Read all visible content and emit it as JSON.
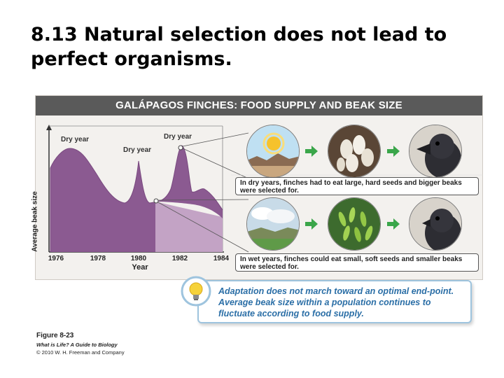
{
  "slide": {
    "title": "8.13  Natural selection does not lead to perfect organisms."
  },
  "figure": {
    "header": "GALÁPAGOS FINCHES: FOOD SUPPLY AND BEAK SIZE",
    "ylabel": "Average beak size",
    "xlabel": "Year",
    "xticks": [
      "1976",
      "1978",
      "1980",
      "1982",
      "1984"
    ],
    "dry_labels": [
      "Dry year",
      "Dry year",
      "Dry year"
    ],
    "dry_caption": "In dry years, finches had to eat large, hard seeds and bigger beaks were selected for.",
    "wet_caption": "In wet years, finches could eat small, soft seeds and smaller beaks were selected for.",
    "callout": "Adaptation does not march toward an optimal end-point. Average beak size within a population continues to fluctuate according to food supply.",
    "colors": {
      "header_bg": "#5a5a5a",
      "area_fill": "#8b5a91",
      "wet_fill": "#c3a3c5",
      "arrow": "#3aa64a",
      "callout_text": "#2a6ea6",
      "callout_border": "#9ec4de"
    },
    "icons": [
      "sun-icon",
      "cloud-icon",
      "large-seeds-icon",
      "small-seeds-icon",
      "finch-large-beak-icon",
      "finch-small-beak-icon",
      "lightbulb-icon"
    ]
  },
  "credit": {
    "figure_no": "Figure 8-23",
    "book": "What is Life? A Guide to Biology",
    "copyright": "© 2010 W. H. Freeman and Company"
  }
}
